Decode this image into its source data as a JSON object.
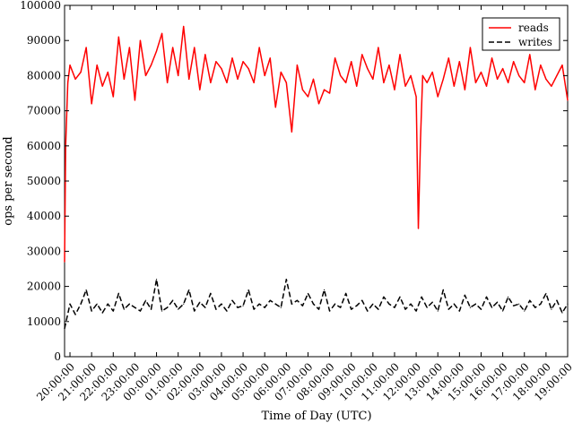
{
  "chart_data": {
    "type": "line",
    "title": "",
    "xlabel": "Time of Day (UTC)",
    "ylabel": "ops per second",
    "ylim": [
      0,
      100000
    ],
    "xlim": [
      19.75,
      43.0
    ],
    "yticks": [
      0,
      10000,
      20000,
      30000,
      40000,
      50000,
      60000,
      70000,
      80000,
      90000,
      100000
    ],
    "xticks": [
      {
        "x": 20,
        "label": "20:00:00"
      },
      {
        "x": 21,
        "label": "21:00:00"
      },
      {
        "x": 22,
        "label": "22:00:00"
      },
      {
        "x": 23,
        "label": "23:00:00"
      },
      {
        "x": 24,
        "label": "00:00:00"
      },
      {
        "x": 25,
        "label": "01:00:00"
      },
      {
        "x": 26,
        "label": "02:00:00"
      },
      {
        "x": 27,
        "label": "03:00:00"
      },
      {
        "x": 28,
        "label": "04:00:00"
      },
      {
        "x": 29,
        "label": "05:00:00"
      },
      {
        "x": 30,
        "label": "06:00:00"
      },
      {
        "x": 31,
        "label": "07:00:00"
      },
      {
        "x": 32,
        "label": "08:00:00"
      },
      {
        "x": 33,
        "label": "09:00:00"
      },
      {
        "x": 34,
        "label": "10:00:00"
      },
      {
        "x": 35,
        "label": "11:00:00"
      },
      {
        "x": 36,
        "label": "12:00:00"
      },
      {
        "x": 37,
        "label": "13:00:00"
      },
      {
        "x": 38,
        "label": "14:00:00"
      },
      {
        "x": 39,
        "label": "15:00:00"
      },
      {
        "x": 40,
        "label": "16:00:00"
      },
      {
        "x": 41,
        "label": "17:00:00"
      },
      {
        "x": 42,
        "label": "18:00:00"
      },
      {
        "x": 43,
        "label": "19:00:00"
      }
    ],
    "legend_position": "top-right",
    "grid": false,
    "series": [
      {
        "name": "reads",
        "color": "#ff0000",
        "dash": "solid",
        "x": [
          19.75,
          19.8,
          19.9,
          20.0,
          20.25,
          20.5,
          20.75,
          21.0,
          21.25,
          21.5,
          21.75,
          22.0,
          22.25,
          22.5,
          22.75,
          23.0,
          23.25,
          23.5,
          23.75,
          24.0,
          24.25,
          24.5,
          24.75,
          25.0,
          25.25,
          25.5,
          25.75,
          26.0,
          26.25,
          26.5,
          26.75,
          27.0,
          27.25,
          27.5,
          27.75,
          28.0,
          28.25,
          28.5,
          28.75,
          29.0,
          29.25,
          29.5,
          29.75,
          30.0,
          30.25,
          30.5,
          30.75,
          31.0,
          31.25,
          31.5,
          31.75,
          32.0,
          32.25,
          32.5,
          32.75,
          33.0,
          33.25,
          33.5,
          33.75,
          34.0,
          34.25,
          34.5,
          34.75,
          35.0,
          35.25,
          35.5,
          35.75,
          36.0,
          36.1,
          36.2,
          36.3,
          36.5,
          36.75,
          37.0,
          37.25,
          37.5,
          37.75,
          38.0,
          38.25,
          38.5,
          38.75,
          39.0,
          39.25,
          39.5,
          39.75,
          40.0,
          40.25,
          40.5,
          40.75,
          41.0,
          41.25,
          41.5,
          41.75,
          42.0,
          42.25,
          42.5,
          42.75,
          43.0
        ],
        "y": [
          27000,
          60000,
          78000,
          83000,
          79000,
          81000,
          88000,
          72000,
          83000,
          77000,
          81000,
          74000,
          91000,
          79000,
          88000,
          73000,
          90000,
          80000,
          83000,
          87000,
          92000,
          78000,
          88000,
          80000,
          94000,
          79000,
          88000,
          76000,
          86000,
          78000,
          84000,
          82000,
          78000,
          85000,
          79000,
          84000,
          82000,
          78000,
          88000,
          80000,
          85000,
          71000,
          81000,
          78000,
          64000,
          83000,
          76000,
          74000,
          79000,
          72000,
          76000,
          75000,
          85000,
          80000,
          78000,
          84000,
          77000,
          86000,
          82000,
          79000,
          88000,
          78000,
          83000,
          76000,
          86000,
          77000,
          80000,
          74000,
          36500,
          62000,
          80000,
          78000,
          81000,
          74000,
          79000,
          85000,
          77000,
          84000,
          76000,
          88000,
          78000,
          81000,
          77000,
          85000,
          79000,
          82000,
          78000,
          84000,
          80000,
          78000,
          86000,
          76000,
          83000,
          79000,
          77000,
          80000,
          83000,
          73000
        ]
      },
      {
        "name": "writes",
        "color": "#000000",
        "dash": "dashed",
        "x": [
          19.75,
          20.0,
          20.25,
          20.5,
          20.75,
          21.0,
          21.25,
          21.5,
          21.75,
          22.0,
          22.25,
          22.5,
          22.75,
          23.0,
          23.25,
          23.5,
          23.75,
          24.0,
          24.25,
          24.5,
          24.75,
          25.0,
          25.25,
          25.5,
          25.75,
          26.0,
          26.25,
          26.5,
          26.75,
          27.0,
          27.25,
          27.5,
          27.75,
          28.0,
          28.25,
          28.5,
          28.75,
          29.0,
          29.25,
          29.5,
          29.75,
          30.0,
          30.25,
          30.5,
          30.75,
          31.0,
          31.25,
          31.5,
          31.75,
          32.0,
          32.25,
          32.5,
          32.75,
          33.0,
          33.25,
          33.5,
          33.75,
          34.0,
          34.25,
          34.5,
          34.75,
          35.0,
          35.25,
          35.5,
          35.75,
          36.0,
          36.25,
          36.5,
          36.75,
          37.0,
          37.25,
          37.5,
          37.75,
          38.0,
          38.25,
          38.5,
          38.75,
          39.0,
          39.25,
          39.5,
          39.75,
          40.0,
          40.25,
          40.5,
          40.75,
          41.0,
          41.25,
          41.5,
          41.75,
          42.0,
          42.25,
          42.5,
          42.75,
          43.0
        ],
        "y": [
          8000,
          15000,
          12000,
          15000,
          19000,
          13000,
          15000,
          12500,
          15000,
          13000,
          18000,
          13500,
          15000,
          14000,
          13000,
          16000,
          13500,
          22000,
          13000,
          14000,
          16000,
          13500,
          15000,
          19000,
          13000,
          15500,
          14000,
          18000,
          13500,
          15000,
          13000,
          16000,
          14000,
          14500,
          19000,
          13500,
          15000,
          14000,
          16000,
          15000,
          14000,
          22000,
          15000,
          16000,
          14500,
          18000,
          15000,
          13500,
          19000,
          13000,
          15000,
          14000,
          18000,
          13500,
          14500,
          16000,
          13000,
          15000,
          13500,
          17000,
          15000,
          14000,
          17000,
          13500,
          15000,
          13000,
          17000,
          14000,
          15500,
          13000,
          19000,
          13500,
          15000,
          13000,
          17500,
          14000,
          15000,
          13500,
          17000,
          14000,
          15500,
          13000,
          17000,
          14500,
          15000,
          13000,
          16000,
          14000,
          15000,
          18000,
          13500,
          16000,
          12500,
          15000
        ]
      }
    ]
  }
}
